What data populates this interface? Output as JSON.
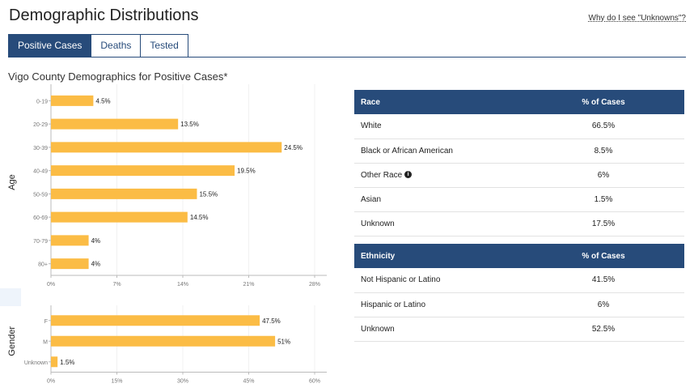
{
  "header": {
    "title": "Demographic Distributions",
    "unknowns_link": "Why do I see \"Unknowns\"?"
  },
  "tabs": [
    {
      "label": "Positive Cases",
      "active": true
    },
    {
      "label": "Deaths",
      "active": false
    },
    {
      "label": "Tested",
      "active": false
    }
  ],
  "section_title": "Vigo County Demographics for Positive Cases*",
  "colors": {
    "bar": "#fbbc45",
    "header": "#274b7a"
  },
  "chart_data": [
    {
      "type": "bar",
      "orientation": "horizontal",
      "ylabel": "Age",
      "categories": [
        "0-19",
        "20-29",
        "30-39",
        "40-49",
        "50-59",
        "60-69",
        "70-79",
        "80+"
      ],
      "values": [
        4.5,
        13.5,
        24.5,
        19.5,
        15.5,
        14.5,
        4,
        4
      ],
      "data_labels": [
        "4.5%",
        "13.5%",
        "24.5%",
        "19.5%",
        "15.5%",
        "14.5%",
        "4%",
        "4%"
      ],
      "xlim": [
        0,
        28
      ],
      "ticks": [
        0,
        7,
        14,
        21,
        28
      ],
      "tick_labels": [
        "0%",
        "7%",
        "14%",
        "21%",
        "28%"
      ]
    },
    {
      "type": "bar",
      "orientation": "horizontal",
      "ylabel": "Gender",
      "categories": [
        "F",
        "M",
        "Unknown"
      ],
      "values": [
        47.5,
        51,
        1.5
      ],
      "data_labels": [
        "47.5%",
        "51%",
        "1.5%"
      ],
      "xlim": [
        0,
        60
      ],
      "ticks": [
        0,
        15,
        30,
        45,
        60
      ],
      "tick_labels": [
        "0%",
        "15%",
        "30%",
        "45%",
        "60%"
      ]
    }
  ],
  "race_table": {
    "headers": [
      "Race",
      "% of Cases"
    ],
    "rows": [
      {
        "name": "White",
        "pct": "66.5%",
        "info": false
      },
      {
        "name": "Black or African American",
        "pct": "8.5%",
        "info": false
      },
      {
        "name": "Other Race",
        "pct": "6%",
        "info": true
      },
      {
        "name": "Asian",
        "pct": "1.5%",
        "info": false
      },
      {
        "name": "Unknown",
        "pct": "17.5%",
        "info": false
      }
    ]
  },
  "ethnicity_table": {
    "headers": [
      "Ethnicity",
      "% of Cases"
    ],
    "rows": [
      {
        "name": "Not Hispanic or Latino",
        "pct": "41.5%"
      },
      {
        "name": "Hispanic or Latino",
        "pct": "6%"
      },
      {
        "name": "Unknown",
        "pct": "52.5%"
      }
    ]
  }
}
